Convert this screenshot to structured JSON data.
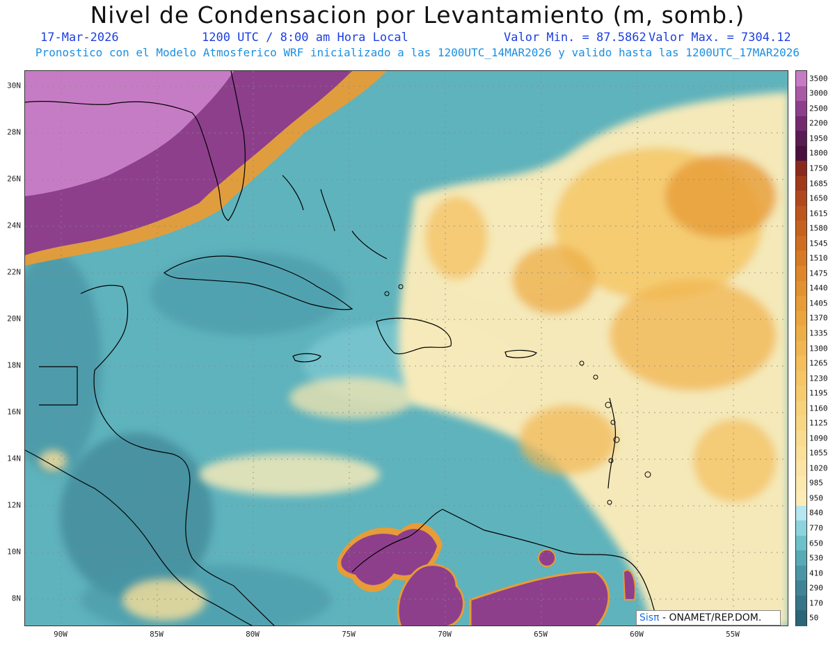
{
  "header": {
    "title": "Nivel de Condensacion por Levantamiento (m, somb.)",
    "date": "17-Mar-2026",
    "time": "1200 UTC / 8:00 am Hora Local",
    "min_label": "Valor Min. = 87.5862",
    "max_label": "Valor Max. = 7304.12",
    "subtitle": "Pronostico con el Modelo Atmosferico WRF inicializado a las 1200UTC_14MAR2026 y valido hasta las  1200UTC_17MAR2026"
  },
  "map": {
    "lon_range": [
      -92.0,
      -52.0
    ],
    "lat_range": [
      6.8,
      30.6
    ],
    "lat_ticks": [
      "30N",
      "28N",
      "26N",
      "24N",
      "22N",
      "20N",
      "18N",
      "16N",
      "14N",
      "12N",
      "10N",
      "8N"
    ],
    "lat_values": [
      30,
      28,
      26,
      24,
      22,
      20,
      18,
      16,
      14,
      12,
      10,
      8
    ],
    "lon_ticks": [
      "90W",
      "85W",
      "80W",
      "75W",
      "70W",
      "65W",
      "60W",
      "55W"
    ],
    "lon_values": [
      -90,
      -85,
      -80,
      -75,
      -70,
      -65,
      -60,
      -55
    ],
    "base_color": "#5fb3bd",
    "coast_color": "#000000"
  },
  "colorbar": {
    "labels": [
      "3500",
      "3000",
      "2500",
      "2200",
      "1950",
      "1800",
      "1750",
      "1685",
      "1650",
      "1615",
      "1580",
      "1545",
      "1510",
      "1475",
      "1440",
      "1405",
      "1370",
      "1335",
      "1300",
      "1265",
      "1230",
      "1195",
      "1160",
      "1125",
      "1090",
      "1055",
      "1020",
      "985",
      "950",
      "840",
      "770",
      "650",
      "530",
      "410",
      "290",
      "170",
      "50"
    ],
    "colors": [
      "#c67cc4",
      "#a95aa6",
      "#8d3f8c",
      "#732a6f",
      "#5a1a52",
      "#4a0f3c",
      "#8a2a1e",
      "#a0391c",
      "#b1481d",
      "#bd561d",
      "#c6621f",
      "#cf6e22",
      "#d67a25",
      "#dd862a",
      "#e29130",
      "#e79c37",
      "#eba53e",
      "#eeae47",
      "#f1b651",
      "#f3be5b",
      "#f5c566",
      "#f6cb70",
      "#f8d17b",
      "#f9d685",
      "#fadb8f",
      "#fbe09a",
      "#fce4a4",
      "#fde8ae",
      "#fdecb8",
      "#b6e6ef",
      "#8dd3de",
      "#6ec1ca",
      "#57aab6",
      "#4a96a6",
      "#3f8496",
      "#367488",
      "#2c6578"
    ]
  },
  "credit": {
    "brand": "Sisπ",
    "org": "- ONAMET/REP.DOM."
  }
}
